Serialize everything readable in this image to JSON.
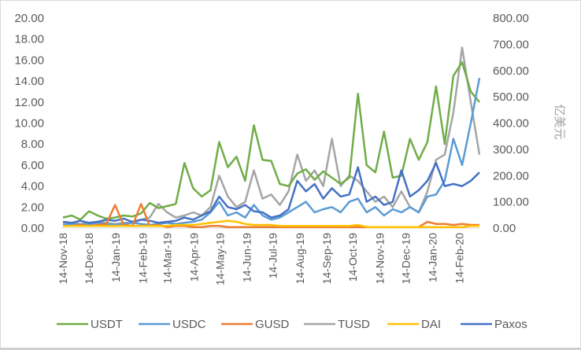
{
  "chart_data": {
    "type": "line",
    "title": "",
    "x_unit": "days since 14-Nov-18",
    "x": [
      0,
      10,
      20,
      30,
      40,
      50,
      60,
      70,
      80,
      90,
      100,
      110,
      120,
      130,
      140,
      150,
      160,
      170,
      180,
      190,
      200,
      210,
      220,
      230,
      240,
      250,
      260,
      270,
      280,
      290,
      300,
      310,
      320,
      330,
      340,
      350,
      360,
      370,
      380,
      390,
      400,
      410,
      420,
      430,
      440,
      450,
      460,
      470,
      480
    ],
    "x_ticks": [
      {
        "label": "14-Nov-18",
        "day": 0
      },
      {
        "label": "14-Dec-18",
        "day": 30
      },
      {
        "label": "14-Jan-19",
        "day": 61
      },
      {
        "label": "14-Feb-19",
        "day": 92
      },
      {
        "label": "14-Mar-19",
        "day": 120
      },
      {
        "label": "14-Apr-19",
        "day": 151
      },
      {
        "label": "14-May-19",
        "day": 181
      },
      {
        "label": "14-Jun-19",
        "day": 212
      },
      {
        "label": "14-Jul-19",
        "day": 242
      },
      {
        "label": "14-Aug-19",
        "day": 273
      },
      {
        "label": "14-Sep-19",
        "day": 304
      },
      {
        "label": "14-Oct-19",
        "day": 334
      },
      {
        "label": "14-Nov-19",
        "day": 365
      },
      {
        "label": "14-Dec-19",
        "day": 395
      },
      {
        "label": "14-Jan-20",
        "day": 426
      },
      {
        "label": "14-Feb-20",
        "day": 457
      }
    ],
    "xlim": [
      0,
      480
    ],
    "ylim_left": [
      0,
      20
    ],
    "ylim_right": [
      0,
      800
    ],
    "yticks_left": [
      "0.00",
      "2.00",
      "4.00",
      "6.00",
      "8.00",
      "10.00",
      "12.00",
      "14.00",
      "16.00",
      "18.00",
      "20.00"
    ],
    "yticks_right": [
      "0.00",
      "100.00",
      "200.00",
      "300.00",
      "400.00",
      "500.00",
      "600.00",
      "700.00",
      "800.00"
    ],
    "ylabel_left": "",
    "ylabel_right": "亿美元",
    "grid": false,
    "legend_position": "bottom",
    "series": [
      {
        "name": "USDT",
        "color": "#70ad47",
        "values": [
          1.0,
          1.2,
          0.8,
          1.6,
          1.2,
          0.9,
          1.0,
          1.2,
          1.1,
          1.4,
          2.4,
          1.9,
          2.1,
          2.3,
          6.2,
          3.8,
          3.0,
          3.6,
          8.2,
          5.8,
          6.8,
          4.5,
          9.8,
          6.5,
          6.4,
          4.2,
          4.0,
          5.2,
          5.6,
          4.6,
          5.4,
          4.8,
          4.2,
          4.8,
          12.8,
          6.0,
          5.3,
          9.2,
          4.8,
          5.0,
          8.5,
          6.5,
          8.2,
          13.5,
          8.0,
          14.5,
          15.8,
          13.0,
          12.0
        ]
      },
      {
        "name": "USDC",
        "color": "#5b9bd5",
        "values": [
          0.3,
          0.4,
          0.3,
          0.4,
          0.5,
          0.4,
          0.3,
          0.4,
          0.5,
          0.4,
          0.3,
          0.4,
          0.5,
          0.4,
          0.5,
          0.6,
          0.8,
          1.5,
          2.5,
          1.2,
          1.5,
          1.0,
          2.2,
          1.2,
          0.8,
          1.0,
          1.5,
          2.0,
          2.5,
          1.5,
          1.8,
          2.0,
          1.5,
          2.5,
          2.8,
          1.5,
          2.0,
          1.2,
          1.8,
          1.5,
          2.0,
          1.5,
          3.0,
          3.2,
          4.5,
          8.5,
          6.0,
          10.0,
          14.3
        ]
      },
      {
        "name": "GUSD",
        "color": "#ed7d31",
        "values": [
          0.2,
          0.2,
          0.3,
          0.2,
          0.3,
          0.4,
          2.2,
          0.3,
          0.2,
          2.3,
          0.2,
          0.3,
          0.1,
          0.2,
          0.2,
          0.1,
          0.1,
          0.2,
          0.2,
          0.1,
          0.1,
          0.1,
          0.1,
          0.1,
          0.1,
          0.1,
          0.1,
          0.1,
          0.1,
          0.1,
          0.1,
          0.1,
          0.1,
          0.1,
          0.1,
          0.1,
          0.1,
          0.1,
          0.1,
          0.1,
          0.1,
          0.1,
          0.6,
          0.4,
          0.4,
          0.3,
          0.4,
          0.3,
          0.3
        ]
      },
      {
        "name": "TUSD",
        "color": "#a5a5a5",
        "values": [
          0.4,
          0.5,
          0.4,
          0.5,
          0.6,
          0.5,
          0.4,
          0.5,
          0.5,
          0.8,
          1.0,
          2.3,
          1.5,
          1.0,
          1.2,
          1.5,
          1.2,
          2.0,
          5.0,
          3.0,
          2.0,
          2.5,
          5.5,
          2.8,
          3.2,
          2.2,
          3.5,
          7.0,
          4.5,
          5.5,
          4.0,
          8.5,
          4.0,
          5.0,
          4.5,
          3.5,
          2.5,
          3.0,
          2.0,
          3.5,
          2.0,
          1.5,
          3.5,
          6.5,
          7.0,
          11.0,
          17.2,
          12.0,
          7.0
        ]
      },
      {
        "name": "DAI",
        "color": "#ffc000",
        "values": [
          0.2,
          0.2,
          0.2,
          0.2,
          0.2,
          0.2,
          0.2,
          0.2,
          0.2,
          0.2,
          0.2,
          0.2,
          0.2,
          0.3,
          0.3,
          0.3,
          0.4,
          0.5,
          0.6,
          0.7,
          0.6,
          0.4,
          0.3,
          0.3,
          0.3,
          0.2,
          0.2,
          0.2,
          0.2,
          0.2,
          0.2,
          0.2,
          0.2,
          0.2,
          0.3,
          0.1,
          0.1,
          0.1,
          0.1,
          0.1,
          0.1,
          0.1,
          0.1,
          0.1,
          0.1,
          0.1,
          0.1,
          0.2,
          0.2
        ]
      },
      {
        "name": "Paxos",
        "color": "#4472c4",
        "values": [
          0.6,
          0.5,
          0.7,
          0.5,
          0.6,
          0.8,
          0.7,
          0.9,
          0.6,
          0.8,
          0.7,
          0.5,
          0.6,
          0.7,
          1.0,
          0.8,
          1.2,
          1.6,
          3.0,
          2.0,
          1.8,
          2.2,
          1.6,
          1.5,
          1.0,
          1.2,
          1.8,
          4.5,
          3.5,
          4.2,
          2.8,
          3.8,
          3.0,
          3.2,
          5.8,
          2.5,
          3.0,
          2.2,
          2.5,
          5.5,
          3.0,
          3.6,
          4.5,
          6.2,
          4.0,
          4.2,
          4.0,
          4.5,
          5.3
        ]
      }
    ],
    "draw_order": [
      "TUSD",
      "USDT",
      "USDC",
      "Paxos",
      "GUSD",
      "DAI"
    ]
  }
}
